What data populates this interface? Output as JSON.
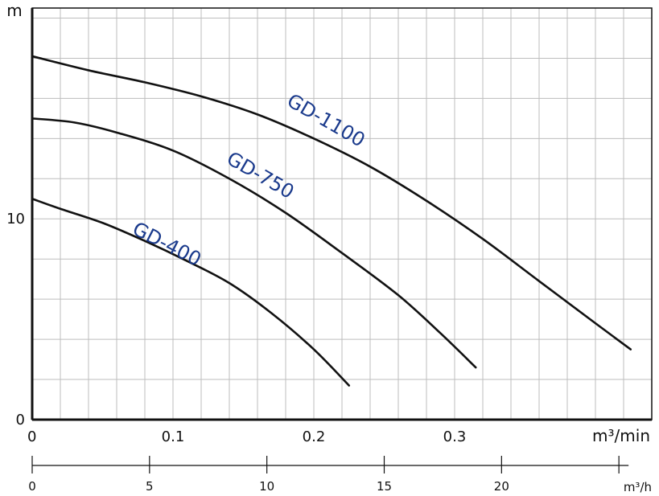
{
  "chart_data": {
    "type": "line",
    "xlabel": "m³/min",
    "ylabel": "m",
    "xlim": [
      0,
      0.44
    ],
    "ylim": [
      0,
      20.5
    ],
    "x_ticks": [
      {
        "value": 0,
        "label": "0"
      },
      {
        "value": 0.1,
        "label": "0.1"
      },
      {
        "value": 0.2,
        "label": "0.2"
      },
      {
        "value": 0.3,
        "label": "0.3"
      }
    ],
    "y_ticks": [
      {
        "value": 0,
        "label": "0"
      },
      {
        "value": 10,
        "label": "10"
      }
    ],
    "grid": true,
    "secondary_axis": {
      "unit": "m³/h",
      "ticks": [
        {
          "value": 0,
          "label": "0"
        },
        {
          "value": 5,
          "label": "5"
        },
        {
          "value": 10,
          "label": "10"
        },
        {
          "value": 15,
          "label": "15"
        },
        {
          "value": 20,
          "label": "20"
        },
        {
          "value": 25,
          "label": ""
        }
      ]
    },
    "series": [
      {
        "name": "GD-1100",
        "color": "#111111",
        "label_color": "#1a3a8c",
        "points": [
          [
            0,
            18.1
          ],
          [
            0.04,
            17.4
          ],
          [
            0.08,
            16.8
          ],
          [
            0.12,
            16.1
          ],
          [
            0.16,
            15.2
          ],
          [
            0.2,
            14.0
          ],
          [
            0.24,
            12.6
          ],
          [
            0.28,
            10.9
          ],
          [
            0.32,
            9.0
          ],
          [
            0.36,
            6.9
          ],
          [
            0.4,
            4.8
          ],
          [
            0.425,
            3.5
          ]
        ]
      },
      {
        "name": "GD-750",
        "color": "#111111",
        "label_color": "#1a3a8c",
        "points": [
          [
            0,
            15.0
          ],
          [
            0.03,
            14.8
          ],
          [
            0.06,
            14.3
          ],
          [
            0.1,
            13.4
          ],
          [
            0.14,
            12.0
          ],
          [
            0.18,
            10.3
          ],
          [
            0.22,
            8.3
          ],
          [
            0.26,
            6.2
          ],
          [
            0.29,
            4.3
          ],
          [
            0.315,
            2.6
          ]
        ]
      },
      {
        "name": "GD-400",
        "color": "#111111",
        "label_color": "#1a3a8c",
        "points": [
          [
            0,
            11.0
          ],
          [
            0.02,
            10.5
          ],
          [
            0.05,
            9.8
          ],
          [
            0.08,
            8.9
          ],
          [
            0.11,
            7.9
          ],
          [
            0.14,
            6.8
          ],
          [
            0.17,
            5.3
          ],
          [
            0.2,
            3.5
          ],
          [
            0.225,
            1.7
          ]
        ]
      }
    ]
  }
}
